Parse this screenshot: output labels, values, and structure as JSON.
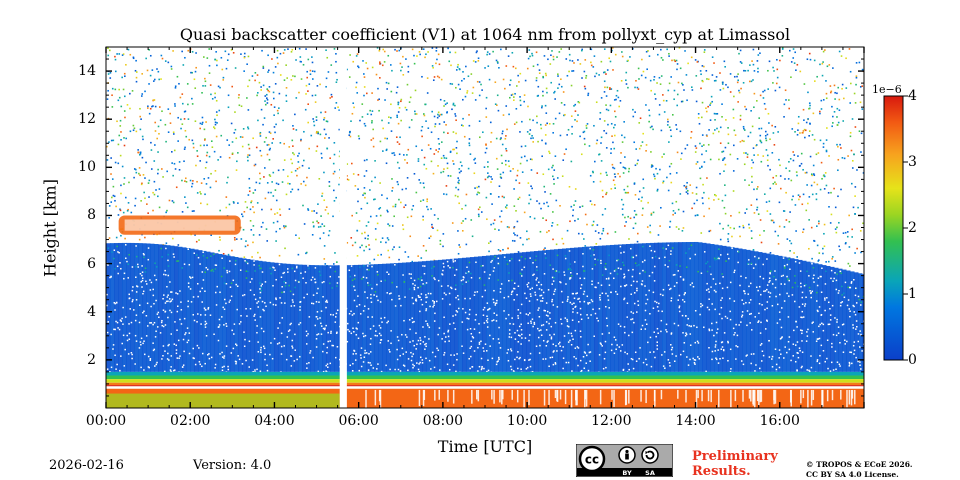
{
  "chart_data": {
    "type": "heatmap",
    "title": "Quasi backscatter coefficient (V1) at 1064 nm from pollyxt_cyp at Limassol",
    "xlabel": "Time [UTC]",
    "ylabel": "Height [km]",
    "x_ticks": [
      "00:00",
      "02:00",
      "04:00",
      "06:00",
      "08:00",
      "10:00",
      "12:00",
      "14:00",
      "16:00"
    ],
    "x_tick_hours": [
      0,
      2,
      4,
      6,
      8,
      10,
      12,
      14,
      16
    ],
    "xlim_hours": [
      0,
      18
    ],
    "y_ticks": [
      "2",
      "4",
      "6",
      "8",
      "10",
      "12",
      "14"
    ],
    "y_tick_values": [
      2,
      4,
      6,
      8,
      10,
      12,
      14
    ],
    "ylim": [
      0,
      15
    ],
    "colorbar": {
      "ticks": [
        "0",
        "1",
        "2",
        "3",
        "4"
      ],
      "tick_values": [
        0,
        1,
        2,
        3,
        4
      ],
      "range": [
        0,
        4
      ],
      "exponent_label": "1e−6",
      "colormap": "jet"
    },
    "layers": [
      {
        "name": "near-surface high signal",
        "height_km": [
          0.0,
          0.9
        ],
        "value_approx": 3.6
      },
      {
        "name": "aerosol boundary layer",
        "height_km": [
          0.9,
          1.5
        ],
        "value_approx": 3.0
      },
      {
        "name": "background aerosol",
        "height_km": [
          1.5,
          6.5
        ],
        "value_approx": 0.4
      },
      {
        "name": "elevated cloud layer",
        "time_hours": [
          0.3,
          3.2
        ],
        "height_km": [
          7.2,
          8.0
        ],
        "value_approx": 3.5
      }
    ],
    "data_gaps_hours": [
      [
        5.55,
        5.72
      ]
    ]
  },
  "footer": {
    "date": "2026-02-16",
    "version": "Version: 4.0",
    "preliminary_line1": "Preliminary",
    "preliminary_line2": "Results.",
    "copyright_line1": "© TROPOS & ECoE 2026.",
    "copyright_line2": "CC BY SA 4.0 License.",
    "badge_by": "BY",
    "badge_sa": "SA"
  },
  "colors": {
    "preliminary": "#e8321f",
    "badge_bg": "#aaaaaa",
    "badge_dark": "#000000"
  }
}
